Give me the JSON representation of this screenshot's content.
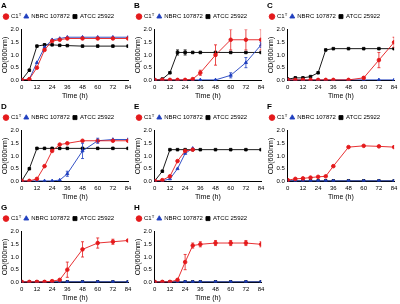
{
  "chart_data": [
    {
      "type": "line",
      "title": "A",
      "x_label": "Time (h)",
      "y_label": "OD(600nm)",
      "x": [
        0,
        6,
        12,
        18,
        24,
        30,
        36,
        48,
        60,
        72,
        84
      ],
      "xlim": [
        0,
        84
      ],
      "xticks": [
        0,
        12,
        24,
        36,
        48,
        60,
        72,
        84
      ],
      "ylim": [
        0,
        2
      ],
      "yticks": [
        {
          "value": 0,
          "label": "0.0"
        },
        0.5,
        {
          "value": 1,
          "label": "1.0"
        },
        1.5,
        {
          "value": 2,
          "label": "2.0"
        }
      ],
      "grid": false,
      "legend": "top",
      "series": [
        {
          "name": "C1ᵀ",
          "color": "#e41a1c",
          "marker": "circle",
          "values": [
            0.02,
            0.05,
            0.5,
            1.2,
            1.55,
            1.6,
            1.65,
            1.65,
            1.65,
            1.65,
            1.65
          ]
        },
        {
          "name": "NBRC 107872",
          "color": "#1f3fbf",
          "marker": "triangle",
          "values": [
            0.02,
            0.05,
            0.7,
            1.3,
            1.6,
            1.65,
            1.7,
            1.7,
            1.7,
            1.7,
            1.7
          ]
        },
        {
          "name": "ATCC 25922",
          "color": "#000000",
          "marker": "square",
          "values": [
            0.02,
            0.4,
            1.35,
            1.4,
            1.4,
            1.38,
            1.37,
            1.35,
            1.35,
            1.35,
            1.35
          ]
        }
      ]
    },
    {
      "type": "line",
      "title": "B",
      "x_label": "Time (h)",
      "y_label": "OD(600nm)",
      "x": [
        0,
        6,
        12,
        18,
        24,
        30,
        36,
        48,
        60,
        72,
        84
      ],
      "xlim": [
        0,
        84
      ],
      "xticks": [
        0,
        12,
        24,
        36,
        48,
        60,
        72,
        84
      ],
      "ylim": [
        0,
        2
      ],
      "yticks": [
        {
          "value": 0,
          "label": "0.0"
        },
        0.5,
        {
          "value": 1,
          "label": "1.0"
        },
        1.5,
        {
          "value": 2,
          "label": "2.0"
        }
      ],
      "grid": false,
      "legend": "top",
      "series": [
        {
          "name": "C1ᵀ",
          "color": "#e41a1c",
          "marker": "circle",
          "values": [
            0.02,
            0.02,
            0.02,
            0.02,
            0.02,
            0.05,
            0.3,
            1.0,
            1.6,
            1.6,
            1.6
          ],
          "errors": [
            0,
            0,
            0,
            0,
            0,
            0,
            0.1,
            0.4,
            0.4,
            0.4,
            0.4
          ]
        },
        {
          "name": "NBRC 107872",
          "color": "#1f3fbf",
          "marker": "triangle",
          "values": [
            0.02,
            0.02,
            0.02,
            0.02,
            0.02,
            0.02,
            0.02,
            0.02,
            0.2,
            0.7,
            1.4
          ],
          "errors": [
            0,
            0,
            0,
            0,
            0,
            0,
            0,
            0,
            0.1,
            0.2,
            0.1
          ]
        },
        {
          "name": "ATCC 25922",
          "color": "#000000",
          "marker": "square",
          "values": [
            0.02,
            0.05,
            0.3,
            1.1,
            1.1,
            1.1,
            1.1,
            1.1,
            1.1,
            1.1,
            1.1
          ],
          "errors": [
            0,
            0,
            0,
            0.1,
            0.1,
            0,
            0,
            0,
            0,
            0,
            0
          ]
        }
      ]
    },
    {
      "type": "line",
      "title": "C",
      "x_label": "Time (h)",
      "y_label": "OD(600nm)",
      "x": [
        0,
        6,
        12,
        18,
        24,
        30,
        36,
        48,
        60,
        72,
        84
      ],
      "xlim": [
        0,
        84
      ],
      "xticks": [
        0,
        12,
        24,
        36,
        48,
        60,
        72,
        84
      ],
      "ylim": [
        0,
        2
      ],
      "yticks": [
        {
          "value": 0,
          "label": "0.0"
        },
        0.5,
        {
          "value": 1,
          "label": "1.0"
        },
        1.5,
        {
          "value": 2,
          "label": "2.0"
        }
      ],
      "grid": false,
      "legend": "top",
      "series": [
        {
          "name": "C1ᵀ",
          "color": "#e41a1c",
          "marker": "circle",
          "values": [
            0.02,
            0.02,
            0.02,
            0.02,
            0.02,
            0.02,
            0.02,
            0.02,
            0.1,
            0.8,
            1.5
          ],
          "errors": [
            0,
            0,
            0,
            0,
            0,
            0,
            0,
            0,
            0.05,
            0.3,
            0.2
          ]
        },
        {
          "name": "NBRC 107872",
          "color": "#1f3fbf",
          "marker": "triangle",
          "values": [
            0.02,
            0.02,
            0.02,
            0.02,
            0.02,
            0.02,
            0.02,
            0.02,
            0.02,
            0.02,
            0.02
          ]
        },
        {
          "name": "ATCC 25922",
          "color": "#000000",
          "marker": "square",
          "values": [
            0.05,
            0.1,
            0.1,
            0.15,
            0.3,
            1.2,
            1.25,
            1.25,
            1.25,
            1.25,
            1.25
          ]
        }
      ]
    },
    {
      "type": "line",
      "title": "D",
      "x_label": "Time (h)",
      "y_label": "OD(600nm)",
      "x": [
        0,
        6,
        12,
        18,
        24,
        30,
        36,
        48,
        60,
        72,
        84
      ],
      "xlim": [
        0,
        84
      ],
      "xticks": [
        0,
        12,
        24,
        36,
        48,
        60,
        72,
        84
      ],
      "ylim": [
        0,
        2
      ],
      "yticks": [
        {
          "value": 0,
          "label": "0.0"
        },
        0.5,
        {
          "value": 1,
          "label": "1.0"
        },
        1.5,
        {
          "value": 2,
          "label": "2.0"
        }
      ],
      "grid": false,
      "legend": "top",
      "series": [
        {
          "name": "C1ᵀ",
          "color": "#e41a1c",
          "marker": "circle",
          "values": [
            0.02,
            0.02,
            0.1,
            0.6,
            1.2,
            1.45,
            1.5,
            1.6,
            1.6,
            1.6,
            1.6
          ]
        },
        {
          "name": "NBRC 107872",
          "color": "#1f3fbf",
          "marker": "triangle",
          "values": [
            0.02,
            0.02,
            0.02,
            0.02,
            0.02,
            0.05,
            0.3,
            1.2,
            1.6,
            1.65,
            1.65
          ],
          "errors": [
            0,
            0,
            0,
            0,
            0,
            0,
            0.1,
            0.3,
            0.1,
            0,
            0
          ]
        },
        {
          "name": "ATCC 25922",
          "color": "#000000",
          "marker": "square",
          "values": [
            0.02,
            0.5,
            1.3,
            1.3,
            1.3,
            1.3,
            1.3,
            1.3,
            1.3,
            1.3,
            1.3
          ]
        }
      ]
    },
    {
      "type": "line",
      "title": "E",
      "x_label": "Time (h)",
      "y_label": "OD(600nm)",
      "x": [
        0,
        6,
        12,
        18,
        24,
        30,
        36,
        48,
        60,
        72,
        84
      ],
      "xlim": [
        0,
        84
      ],
      "xticks": [
        0,
        12,
        24,
        36,
        48,
        60,
        72,
        84
      ],
      "ylim": [
        0,
        2
      ],
      "yticks": [
        {
          "value": 0,
          "label": "0.0"
        },
        0.5,
        {
          "value": 1,
          "label": "1.0"
        },
        1.5,
        {
          "value": 2,
          "label": "2.0"
        }
      ],
      "grid": false,
      "legend": "top",
      "series": [
        {
          "name": "C1ᵀ",
          "color": "#e41a1c",
          "marker": "circle",
          "values": [
            0.02,
            0.05,
            0.2,
            0.8,
            1.2,
            1.25,
            null,
            null,
            null,
            null,
            null
          ]
        },
        {
          "name": "NBRC 107872",
          "color": "#1f3fbf",
          "marker": "triangle",
          "values": [
            0.02,
            0.02,
            0.1,
            0.5,
            1.1,
            1.3,
            null,
            null,
            null,
            null,
            null
          ]
        },
        {
          "name": "ATCC 25922",
          "color": "#000000",
          "marker": "square",
          "values": [
            0.02,
            0.4,
            1.25,
            1.25,
            1.25,
            1.25,
            1.25,
            1.25,
            1.25,
            1.25,
            1.25
          ]
        }
      ]
    },
    {
      "type": "line",
      "title": "F",
      "x_label": "Time (h)",
      "y_label": "OD(600nm)",
      "x": [
        0,
        6,
        12,
        18,
        24,
        30,
        36,
        48,
        60,
        72,
        84
      ],
      "xlim": [
        0,
        84
      ],
      "xticks": [
        0,
        12,
        24,
        36,
        48,
        60,
        72,
        84
      ],
      "ylim": [
        0,
        2
      ],
      "yticks": [
        {
          "value": 0,
          "label": "0.0"
        },
        0.5,
        {
          "value": 1,
          "label": "1.0"
        },
        1.5,
        {
          "value": 2,
          "label": "2.0"
        }
      ],
      "grid": false,
      "legend": "top",
      "series": [
        {
          "name": "C1ᵀ",
          "color": "#e41a1c",
          "marker": "circle",
          "values": [
            0.05,
            0.1,
            0.12,
            0.15,
            0.18,
            0.2,
            0.6,
            1.35,
            1.4,
            1.38,
            1.35
          ]
        },
        {
          "name": "NBRC 107872",
          "color": "#1f3fbf",
          "marker": "triangle",
          "values": [
            0.02,
            0.02,
            0.02,
            0.02,
            0.02,
            0.02,
            0.02,
            0.02,
            0.02,
            0.02,
            0.02
          ]
        },
        {
          "name": "ATCC 25922",
          "color": "#000000",
          "marker": "square",
          "values": [
            0.02,
            0.02,
            0.02,
            0.02,
            0.02,
            0.02,
            0.02,
            0.02,
            0.02,
            0.02,
            0.02
          ]
        }
      ]
    },
    {
      "type": "line",
      "title": "G",
      "x_label": "Time (h)",
      "y_label": "OD(600nm)",
      "x": [
        0,
        6,
        12,
        18,
        24,
        30,
        36,
        48,
        60,
        72,
        84
      ],
      "xlim": [
        0,
        84
      ],
      "xticks": [
        0,
        12,
        24,
        36,
        48,
        60,
        72,
        84
      ],
      "ylim": [
        0,
        2
      ],
      "yticks": [
        {
          "value": 0,
          "label": "0.0"
        },
        0.5,
        {
          "value": 1,
          "label": "1.0"
        },
        1.5,
        {
          "value": 2,
          "label": "2.0"
        }
      ],
      "grid": false,
      "legend": "top",
      "series": [
        {
          "name": "C1ᵀ",
          "color": "#e41a1c",
          "marker": "circle",
          "values": [
            0.02,
            0.02,
            0.02,
            0.02,
            0.05,
            0.1,
            0.5,
            1.3,
            1.55,
            1.6,
            1.65
          ],
          "errors": [
            0,
            0,
            0,
            0,
            0,
            0,
            0.3,
            0.3,
            0.2,
            0.1,
            0
          ]
        },
        {
          "name": "NBRC 107872",
          "color": "#1f3fbf",
          "marker": "triangle",
          "values": [
            0.02,
            0.02,
            0.02,
            0.02,
            0.02,
            0.02,
            0.02,
            0.02,
            0.02,
            0.02,
            0.02
          ]
        },
        {
          "name": "ATCC 25922",
          "color": "#000000",
          "marker": "square",
          "values": [
            0.02,
            0.02,
            0.02,
            0.02,
            0.02,
            0.02,
            0.02,
            0.02,
            0.02,
            0.02,
            0.02
          ]
        }
      ]
    },
    {
      "type": "line",
      "title": "H",
      "x_label": "Time (h)",
      "y_label": "OD(600nm)",
      "x": [
        0,
        6,
        12,
        18,
        24,
        30,
        36,
        48,
        60,
        72,
        84
      ],
      "xlim": [
        0,
        84
      ],
      "xticks": [
        0,
        12,
        24,
        36,
        48,
        60,
        72,
        84
      ],
      "ylim": [
        0,
        2
      ],
      "yticks": [
        {
          "value": 0,
          "label": "0.0"
        },
        0.5,
        {
          "value": 1,
          "label": "1.0"
        },
        1.5,
        {
          "value": 2,
          "label": "2.0"
        }
      ],
      "grid": false,
      "legend": "top",
      "series": [
        {
          "name": "C1ᵀ",
          "color": "#e41a1c",
          "marker": "circle",
          "values": [
            0.02,
            0.02,
            0.02,
            0.1,
            0.8,
            1.45,
            1.5,
            1.55,
            1.55,
            1.55,
            1.5
          ],
          "errors": [
            0,
            0,
            0,
            0,
            0.3,
            0.1,
            0.1,
            0.1,
            0.1,
            0.1,
            0.1
          ]
        },
        {
          "name": "NBRC 107872",
          "color": "#1f3fbf",
          "marker": "triangle",
          "values": [
            0.02,
            0.02,
            0.02,
            0.02,
            0.02,
            0.02,
            0.02,
            0.02,
            0.02,
            0.02,
            0.02
          ]
        },
        {
          "name": "ATCC 25922",
          "color": "#000000",
          "marker": "square",
          "values": [
            0.02,
            0.02,
            0.02,
            0.02,
            0.02,
            0.02,
            0.02,
            0.02,
            0.02,
            0.02,
            0.02
          ]
        }
      ]
    }
  ]
}
